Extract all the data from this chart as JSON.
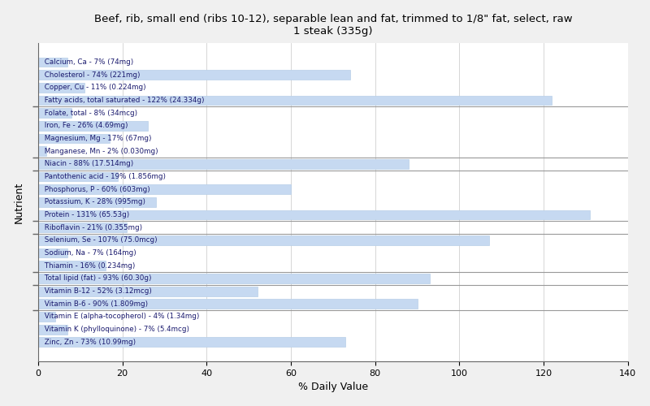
{
  "title": "Beef, rib, small end (ribs 10-12), separable lean and fat, trimmed to 1/8\" fat, select, raw\n1 steak (335g)",
  "xlabel": "% Daily Value",
  "ylabel": "Nutrient",
  "bar_color": "#c6d9f1",
  "bar_edge_color": "#b8cfe8",
  "background_color": "#f0f0f0",
  "plot_background": "#ffffff",
  "xlim": [
    0,
    140
  ],
  "xticks": [
    0,
    20,
    40,
    60,
    80,
    100,
    120,
    140
  ],
  "nutrients": [
    "Calcium, Ca - 7% (74mg)",
    "Cholesterol - 74% (221mg)",
    "Copper, Cu - 11% (0.224mg)",
    "Fatty acids, total saturated - 122% (24.334g)",
    "Folate, total - 8% (34mcg)",
    "Iron, Fe - 26% (4.69mg)",
    "Magnesium, Mg - 17% (67mg)",
    "Manganese, Mn - 2% (0.030mg)",
    "Niacin - 88% (17.514mg)",
    "Pantothenic acid - 19% (1.856mg)",
    "Phosphorus, P - 60% (603mg)",
    "Potassium, K - 28% (995mg)",
    "Protein - 131% (65.53g)",
    "Riboflavin - 21% (0.355mg)",
    "Selenium, Se - 107% (75.0mcg)",
    "Sodium, Na - 7% (164mg)",
    "Thiamin - 16% (0.234mg)",
    "Total lipid (fat) - 93% (60.30g)",
    "Vitamin B-12 - 52% (3.12mcg)",
    "Vitamin B-6 - 90% (1.809mg)",
    "Vitamin E (alpha-tocopherol) - 4% (1.34mg)",
    "Vitamin K (phylloquinone) - 7% (5.4mcg)",
    "Zinc, Zn - 73% (10.99mg)"
  ],
  "values": [
    7,
    74,
    11,
    122,
    8,
    26,
    17,
    2,
    88,
    19,
    60,
    28,
    131,
    21,
    107,
    7,
    16,
    93,
    52,
    90,
    4,
    7,
    73
  ],
  "group_separators": [
    3.5,
    7.5,
    8.5,
    12.5,
    13.5,
    16.5,
    17.5,
    19.5
  ],
  "group_ticks": [
    1.5,
    5.5,
    8.0,
    10.5,
    13.0,
    15.5,
    17.0,
    18.5,
    21.0
  ]
}
